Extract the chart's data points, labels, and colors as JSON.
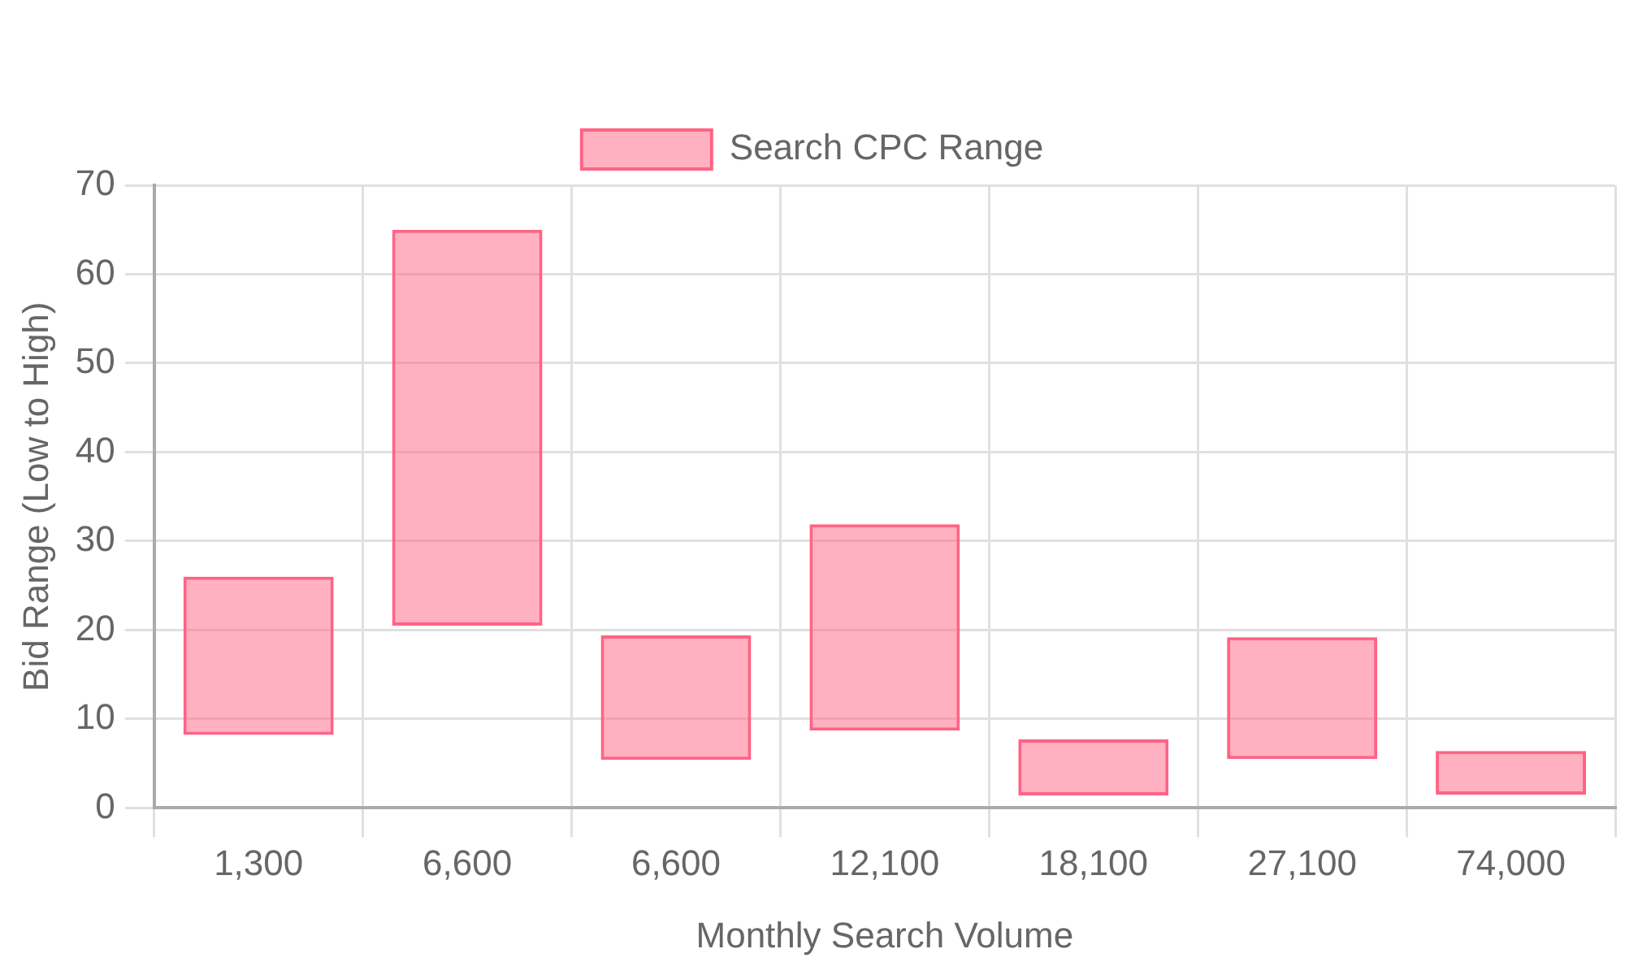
{
  "chart_data": {
    "type": "bar",
    "xlabel": "Monthly Search Volume",
    "ylabel": "Bid Range (Low to High)",
    "categories": [
      "1,300",
      "6,600",
      "6,600",
      "12,100",
      "18,100",
      "27,100",
      "74,000"
    ],
    "series": [
      {
        "name": "Search CPC Range",
        "color": "#ff6384",
        "values": [
          17.8,
          44.5,
          14,
          23.2,
          6.3,
          13.7,
          4.9
        ],
        "base": [
          8.2,
          20.5,
          5.4,
          8.7,
          1.4,
          5.5,
          1.5
        ]
      }
    ],
    "ylim": [
      0,
      70
    ],
    "yticks": [
      0,
      10,
      20,
      30,
      40,
      50,
      60,
      70
    ],
    "grid": true,
    "legend": "top"
  }
}
